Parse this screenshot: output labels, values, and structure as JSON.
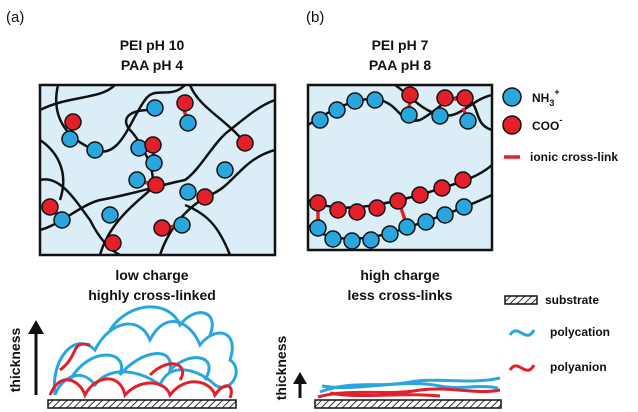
{
  "panels": [
    {
      "label": "(a)",
      "title": [
        "PEI pH 10",
        "PAA pH 4"
      ],
      "caption": [
        "low charge",
        "highly cross-linked"
      ],
      "axis": "thickness"
    },
    {
      "label": "(b)",
      "title": [
        "PEI pH 7",
        "PAA pH 8"
      ],
      "caption": [
        "high charge",
        "less cross-links"
      ],
      "axis": "thickness"
    }
  ],
  "legend": {
    "cation": {
      "base": "NH",
      "sub": "3",
      "sup": "+"
    },
    "anion": {
      "base": "COO",
      "sup": "-"
    },
    "crosslink": "ionic cross-link",
    "substrate": "substrate",
    "polycation": "polycation",
    "polyanion": "polyanion"
  }
}
